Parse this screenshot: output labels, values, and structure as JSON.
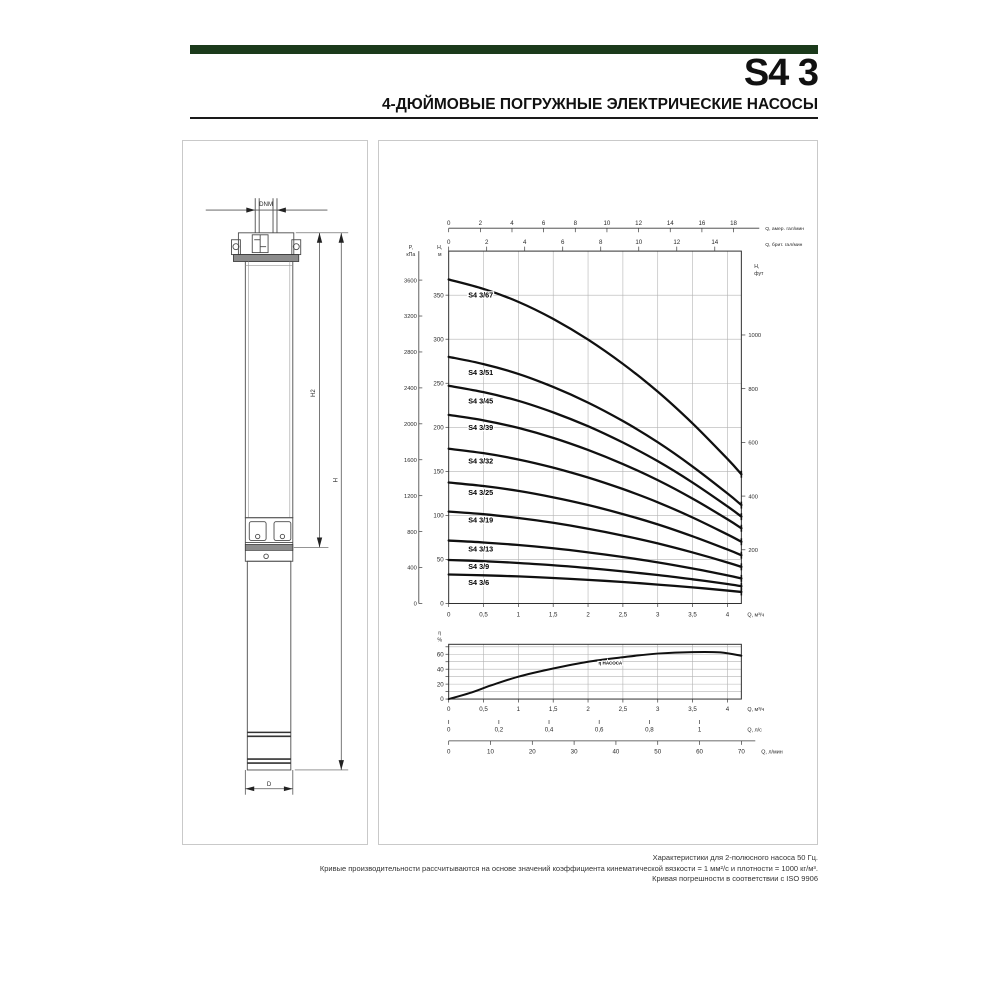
{
  "colors": {
    "header_bar": "#1b3a1b",
    "curve": "#101010",
    "grid": "#b3b3b3",
    "axis": "#3a3a3a"
  },
  "header": {
    "title": "S4 3",
    "subtitle": "4-ДЮЙМОВЫЕ ПОГРУЖНЫЕ ЭЛЕКТРИЧЕСКИЕ НАСОСЫ"
  },
  "drawing": {
    "labels": {
      "dnm": "DNM",
      "h2": "H2",
      "h": "H",
      "d": "D"
    }
  },
  "chart_data": [
    {
      "type": "line",
      "xlabel": "Q, м³/ч",
      "ylabel": "H, м",
      "xlim": [
        0,
        4.2
      ],
      "ylim": [
        0,
        400
      ],
      "grid": true,
      "x_ticks": {
        "values": [
          0,
          0.5,
          1,
          1.5,
          2,
          2.5,
          3,
          3.5,
          4
        ],
        "labels": [
          "0",
          "0,5",
          "1",
          "1,5",
          "2",
          "2,5",
          "3",
          "3,5",
          "4"
        ],
        "unit": "Q, м³/ч"
      },
      "y_ticks": {
        "values": [
          0,
          50,
          100,
          150,
          200,
          250,
          300,
          350
        ],
        "unit_lines": [
          "H,",
          "м"
        ]
      },
      "left_axis_kpa": {
        "unit_lines": [
          "P,",
          "кПа"
        ],
        "values": [
          0,
          400,
          800,
          1200,
          1600,
          2000,
          2400,
          2800,
          3200,
          3600
        ]
      },
      "right_axis_ft": {
        "unit_lines": [
          "H,",
          "фут"
        ],
        "values": [
          200,
          400,
          600,
          800,
          1000
        ]
      },
      "top_axis_us_gpm": {
        "unit": "Q, амер. гал/мин",
        "values": [
          0,
          2,
          4,
          6,
          8,
          10,
          12,
          14,
          16,
          18
        ],
        "m3h_per_unit": 0.22712
      },
      "top_axis_imp_gpm": {
        "unit": "Q, брит. гал/мин",
        "values": [
          0,
          2,
          4,
          6,
          8,
          10,
          12,
          14
        ],
        "m3h_per_unit": 0.27277
      },
      "x": [
        0,
        0.5,
        1,
        1.5,
        2,
        2.5,
        3,
        3.5,
        4,
        4.2
      ],
      "series": [
        {
          "name": "S4 3/67",
          "label_h": 350,
          "values": [
            367.8,
            357.1,
            342.4,
            323.0,
            299.5,
            272.0,
            240.5,
            204.4,
            164.2,
            146.7
          ]
        },
        {
          "name": "S4 3/51",
          "label_h": 262,
          "values": [
            280.0,
            271.8,
            260.6,
            245.8,
            228.0,
            207.1,
            183.1,
            155.5,
            125.0,
            111.7
          ]
        },
        {
          "name": "S4 3/45",
          "label_h": 230,
          "values": [
            247.1,
            239.9,
            230.0,
            216.9,
            201.2,
            182.7,
            161.6,
            137.3,
            110.3,
            98.6
          ]
        },
        {
          "name": "S4 3/39",
          "label_h": 200,
          "values": [
            214.1,
            207.9,
            199.3,
            188.0,
            174.3,
            158.3,
            140.0,
            119.0,
            95.6,
            85.4
          ]
        },
        {
          "name": "S4 3/32",
          "label_h": 162,
          "values": [
            175.7,
            170.6,
            163.5,
            154.2,
            143.0,
            129.9,
            114.9,
            97.6,
            78.4,
            70.1
          ]
        },
        {
          "name": "S4 3/25",
          "label_h": 126,
          "values": [
            137.3,
            133.3,
            127.8,
            120.5,
            111.8,
            101.5,
            89.8,
            76.3,
            61.3,
            54.8
          ]
        },
        {
          "name": "S4 3/19",
          "label_h": 95,
          "values": [
            104.3,
            101.3,
            97.1,
            91.6,
            84.9,
            77.1,
            68.2,
            58.0,
            46.6,
            41.6
          ]
        },
        {
          "name": "S4 3/13",
          "label_h": 62,
          "values": [
            71.4,
            69.3,
            66.4,
            62.7,
            58.1,
            52.8,
            46.7,
            39.7,
            31.9,
            28.5
          ]
        },
        {
          "name": "S4 3/9",
          "label_h": 42,
          "values": [
            49.4,
            48.0,
            46.0,
            43.4,
            40.2,
            36.5,
            32.3,
            27.5,
            22.1,
            19.7
          ]
        },
        {
          "name": "S4 3/6",
          "label_h": 24,
          "values": [
            32.9,
            32.0,
            30.7,
            28.9,
            26.8,
            24.4,
            21.5,
            18.3,
            14.7,
            13.1
          ]
        }
      ]
    },
    {
      "type": "line",
      "xlabel": "Q, м³/ч",
      "ylabel": "η, %",
      "xlim": [
        0,
        4.2
      ],
      "ylim": [
        0,
        73
      ],
      "grid": true,
      "y_ticks": {
        "values": [
          0,
          10,
          20,
          30,
          40,
          50,
          60,
          70
        ],
        "labeled": [
          0,
          20,
          40,
          60
        ],
        "unit_lines": [
          "η",
          "%"
        ]
      },
      "x_ticks_m3h": {
        "values": [
          0,
          0.5,
          1,
          1.5,
          2,
          2.5,
          3,
          3.5,
          4
        ],
        "labels": [
          "0",
          "0,5",
          "1",
          "1,5",
          "2",
          "2,5",
          "3",
          "3,5",
          "4"
        ],
        "unit": "Q, м³/ч"
      },
      "x_ticks_lps": {
        "values": [
          0,
          0.2,
          0.4,
          0.6,
          0.8,
          1
        ],
        "labels": [
          "0",
          "0,2",
          "0,4",
          "0,6",
          "0,8",
          "1"
        ],
        "unit": "Q, л/с",
        "m3h_per_unit": 3.6
      },
      "x_ticks_lmin": {
        "values": [
          0,
          10,
          20,
          30,
          40,
          50,
          60,
          70
        ],
        "unit": "Q, л/мин",
        "m3h_per_unit": 0.06
      },
      "series": [
        {
          "name": "η НАСОСА",
          "x": [
            0,
            0.3,
            0.6,
            1,
            1.5,
            2,
            2.5,
            3,
            3.5,
            3.9,
            4.2
          ],
          "y": [
            0,
            8,
            18,
            30,
            41,
            50,
            56,
            61,
            63,
            62.5,
            58
          ]
        }
      ]
    }
  ],
  "footer": {
    "lines": [
      "Характеристики для 2-полюсного насоса 50 Гц.",
      "Кривые производительности рассчитываются на основе значений коэффициента кинематической вязкости = 1 мм²/с и плотности = 1000 кг/м³.",
      "Кривая погрешности в соответствии с ISO 9906"
    ]
  }
}
